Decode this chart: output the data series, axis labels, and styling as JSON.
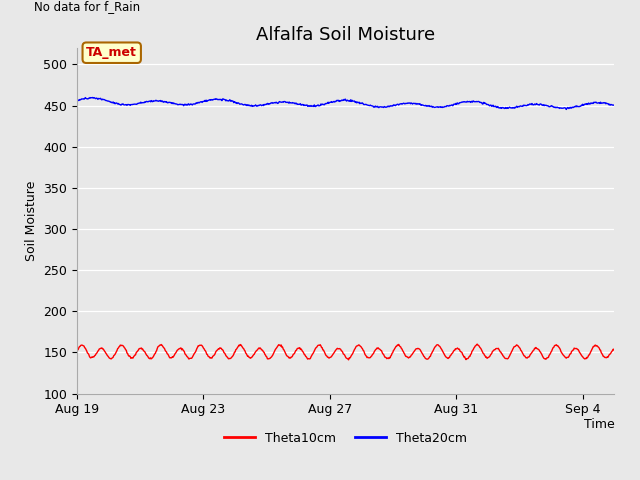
{
  "title": "Alfalfa Soil Moisture",
  "top_left_text": "No data for f_Rain",
  "time_label": "Time",
  "ylabel": "Soil Moisture",
  "ylim": [
    100,
    520
  ],
  "yticks": [
    100,
    150,
    200,
    250,
    300,
    350,
    400,
    450,
    500
  ],
  "xtick_labels": [
    "Aug 19",
    "Aug 23",
    "Aug 27",
    "Aug 31",
    "Sep 4"
  ],
  "bg_color": "#e8e8e8",
  "fig_bg_color": "#e8e8e8",
  "line1_color": "#ff0000",
  "line2_color": "#0000ff",
  "line1_label": "Theta10cm",
  "line2_label": "Theta20cm",
  "box_label": "TA_met",
  "box_bg": "#ffffcc",
  "box_border": "#aa6600",
  "box_text_color": "#cc0000",
  "title_fontsize": 13,
  "axis_fontsize": 9,
  "tick_fontsize": 9,
  "theta10_base": 150,
  "theta10_amp": 7,
  "theta10_freq_per_day": 1.6,
  "theta20_base": 455,
  "theta20_amp": 3,
  "theta20_freq_per_day": 0.5,
  "theta20_trend": -0.35,
  "n_days": 17
}
